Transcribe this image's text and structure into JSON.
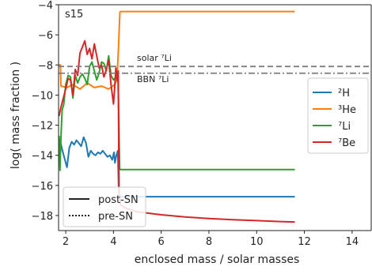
{
  "chart_data": {
    "type": "line",
    "title": "",
    "panel_label": "s15",
    "xlabel": "enclosed mass / solar masses",
    "ylabel": "log( mass fraction )",
    "xlim": [
      1.7,
      14.8
    ],
    "ylim": [
      -19.0,
      -4.0
    ],
    "x_ticks": [
      2,
      4,
      6,
      8,
      10,
      12,
      14
    ],
    "y_ticks": [
      -18,
      -16,
      -14,
      -12,
      -10,
      -8,
      -6,
      -4
    ],
    "grid": false,
    "legend_species_position": "right",
    "legend_style_position": "lower-left",
    "colors": {
      "H2": "#1f77b4",
      "He3": "#ff7f0e",
      "Li7": "#2ca02c",
      "Be7": "#d62728",
      "reference": "#7f7f7f",
      "axis": "#222222"
    },
    "series": [
      {
        "name": "²H",
        "key": "H2",
        "x": [
          1.72,
          1.78,
          1.85,
          1.95,
          2.05,
          2.15,
          2.25,
          2.35,
          2.45,
          2.55,
          2.65,
          2.75,
          2.85,
          2.95,
          3.05,
          3.15,
          3.25,
          3.35,
          3.45,
          3.55,
          3.65,
          3.75,
          3.85,
          3.95,
          4.02,
          4.06,
          4.12,
          4.18,
          4.22,
          4.26,
          4.3,
          4.5,
          5,
          6,
          7,
          8,
          9,
          10,
          11,
          11.6
        ],
        "y": [
          -12.9,
          -13.1,
          -13.6,
          -14.2,
          -14.8,
          -13.5,
          -13.1,
          -13.3,
          -13.0,
          -13.2,
          -13.4,
          -12.8,
          -13.2,
          -14.1,
          -13.7,
          -13.9,
          -14.0,
          -13.8,
          -13.9,
          -13.7,
          -13.9,
          -14.1,
          -14.0,
          -14.3,
          -13.8,
          -14.5,
          -14.0,
          -13.7,
          -16.4,
          -16.7,
          -16.75,
          -16.75,
          -16.75,
          -16.75,
          -16.75,
          -16.75,
          -16.75,
          -16.75,
          -16.75,
          -16.75
        ]
      },
      {
        "name": "³He",
        "key": "He3",
        "x": [
          1.72,
          1.78,
          1.8,
          2.05,
          2.3,
          2.6,
          2.9,
          3.2,
          3.5,
          3.8,
          4.05,
          4.15,
          4.22,
          4.27,
          4.3,
          4.5,
          5,
          6,
          7,
          8,
          9,
          10,
          11,
          11.6
        ],
        "y": [
          -8.0,
          -8.0,
          -9.4,
          -9.5,
          -9.3,
          -9.6,
          -9.2,
          -9.5,
          -9.4,
          -9.6,
          -9.3,
          -9.0,
          -6.5,
          -4.5,
          -4.45,
          -4.45,
          -4.45,
          -4.45,
          -4.45,
          -4.45,
          -4.45,
          -4.45,
          -4.45,
          -4.45
        ]
      },
      {
        "name": "⁷Li",
        "key": "Li7",
        "x": [
          1.72,
          1.76,
          1.8,
          1.85,
          1.92,
          2.0,
          2.1,
          2.2,
          2.3,
          2.4,
          2.5,
          2.6,
          2.7,
          2.8,
          2.9,
          3.0,
          3.1,
          3.2,
          3.3,
          3.4,
          3.5,
          3.6,
          3.7,
          3.8,
          3.9,
          4.0,
          4.1,
          4.18,
          4.22,
          4.26,
          4.3,
          4.5,
          5,
          6,
          7,
          8,
          9,
          10,
          11,
          11.6
        ],
        "y": [
          -12.7,
          -15.0,
          -12.8,
          -11.0,
          -10.6,
          -9.3,
          -8.7,
          -8.8,
          -10.2,
          -8.7,
          -9.2,
          -8.8,
          -8.6,
          -8.9,
          -9.3,
          -8.1,
          -7.8,
          -8.4,
          -9.0,
          -8.5,
          -7.8,
          -7.9,
          -8.4,
          -7.4,
          -8.7,
          -9.0,
          -8.8,
          -8.5,
          -11.0,
          -14.9,
          -14.95,
          -14.95,
          -14.95,
          -14.95,
          -14.95,
          -14.95,
          -14.95,
          -14.95,
          -14.95,
          -14.95
        ]
      },
      {
        "name": "⁷Be",
        "key": "Be7",
        "x": [
          1.72,
          1.8,
          1.9,
          2.0,
          2.1,
          2.2,
          2.3,
          2.4,
          2.5,
          2.6,
          2.7,
          2.8,
          2.9,
          3.0,
          3.1,
          3.2,
          3.3,
          3.4,
          3.5,
          3.6,
          3.7,
          3.8,
          3.9,
          4.0,
          4.05,
          4.1,
          4.15,
          4.2,
          4.22,
          4.24,
          4.3,
          4.5,
          5,
          6,
          7,
          8,
          9,
          10,
          11,
          11.6
        ],
        "y": [
          -11.4,
          -10.8,
          -10.2,
          -9.6,
          -8.9,
          -9.0,
          -10.0,
          -8.3,
          -8.7,
          -7.2,
          -6.8,
          -6.4,
          -7.3,
          -6.9,
          -7.6,
          -6.6,
          -7.4,
          -8.2,
          -8.0,
          -8.8,
          -8.3,
          -7.7,
          -9.3,
          -10.6,
          -9.5,
          -8.2,
          -9.0,
          -8.4,
          -13.5,
          -16.7,
          -17.3,
          -17.5,
          -17.75,
          -17.95,
          -18.1,
          -18.2,
          -18.28,
          -18.34,
          -18.4,
          -18.43
        ]
      }
    ],
    "reference_lines": [
      {
        "name": "solar ⁷Li",
        "y": -8.1,
        "style": "dashed"
      },
      {
        "name": "BBN ⁷Li",
        "y": -8.55,
        "style": "dashdot"
      }
    ],
    "style_legend": [
      "post-SN",
      "pre-SN"
    ]
  }
}
